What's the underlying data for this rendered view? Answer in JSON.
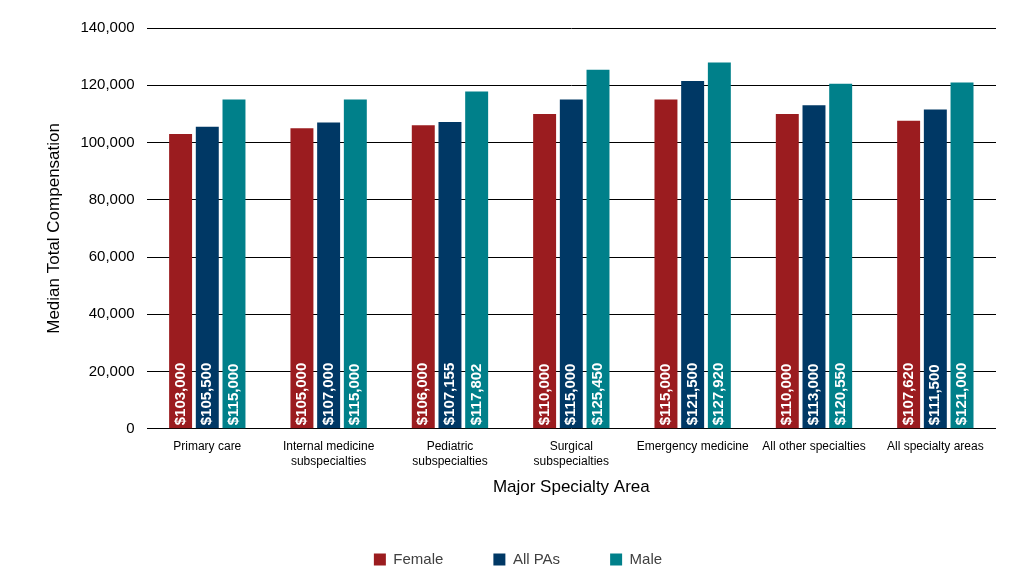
{
  "chart_data": {
    "type": "bar",
    "x_label": "Major Specialty Area",
    "y_label": "Median Total Compensation",
    "categories": [
      "Primary care",
      "Internal medicine subspecialties",
      "Pediatric subspecialties",
      "Surgical subspecialties",
      "Emergency medicine",
      "All other specialties",
      "All specialty areas"
    ],
    "series": [
      {
        "name": "Female",
        "color": "#9b1c1f",
        "values": [
          103000,
          105000,
          106000,
          110000,
          115000,
          110000,
          107620
        ],
        "value_labels": [
          "$103,000",
          "$105,000",
          "$106,000",
          "$110,000",
          "$115,000",
          "$110,000",
          "$107,620"
        ]
      },
      {
        "name": "All PAs",
        "color": "#003865",
        "values": [
          105500,
          107000,
          107155,
          115000,
          121500,
          113000,
          111500
        ],
        "value_labels": [
          "$105,500",
          "$107,000",
          "$107,155",
          "$115,000",
          "$121,500",
          "$113,000",
          "$111,500"
        ]
      },
      {
        "name": "Male",
        "color": "#00808a",
        "values": [
          115000,
          115000,
          117802,
          125450,
          127920,
          120550,
          121000
        ],
        "value_labels": [
          "$115,000",
          "$115,000",
          "$117,802",
          "$125,450",
          "$127,920",
          "$120,550",
          "$121,000"
        ]
      }
    ],
    "ylim": [
      0,
      140000
    ],
    "yticks": [
      0,
      {
        "value": 20000,
        "label": "20,000"
      },
      {
        "value": 40000,
        "label": "40,000"
      },
      {
        "value": 60000,
        "label": "60,000"
      },
      {
        "value": 80000,
        "label": "80,000"
      },
      {
        "value": 100000,
        "label": "100,000"
      },
      {
        "value": 120000,
        "label": "120,000"
      },
      {
        "value": 140000,
        "label": "140,000"
      }
    ],
    "grid": true,
    "legend": "bottom",
    "data_labels": true
  }
}
